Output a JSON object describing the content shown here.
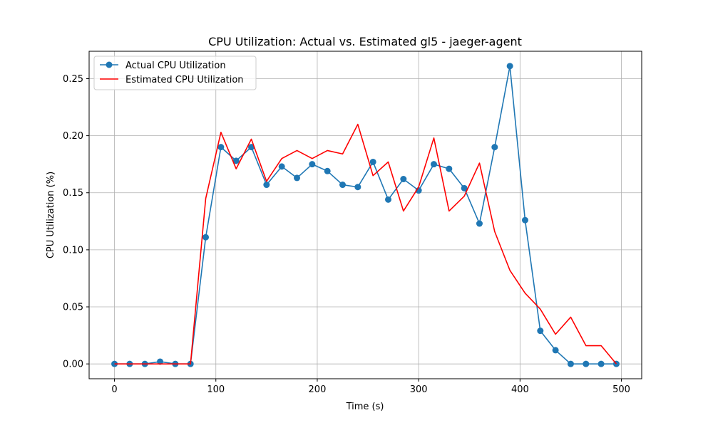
{
  "chart_data": {
    "type": "line",
    "title": "CPU Utilization: Actual vs. Estimated gl5 - jaeger-agent",
    "xlabel": "Time (s)",
    "ylabel": "CPU Utilization (%)",
    "xlim": [
      -25,
      520
    ],
    "ylim": [
      -0.013,
      0.274
    ],
    "xticks": [
      0,
      100,
      200,
      300,
      400,
      500
    ],
    "xtick_labels": [
      "0",
      "100",
      "200",
      "300",
      "400",
      "500"
    ],
    "yticks": [
      0.0,
      0.05,
      0.1,
      0.15,
      0.2,
      0.25
    ],
    "ytick_labels": [
      "0.00",
      "0.05",
      "0.10",
      "0.15",
      "0.20",
      "0.25"
    ],
    "grid": true,
    "legend_position": "top-left",
    "x": [
      0,
      15,
      30,
      45,
      60,
      75,
      90,
      105,
      120,
      135,
      150,
      165,
      180,
      195,
      210,
      225,
      240,
      255,
      270,
      285,
      300,
      315,
      330,
      345,
      360,
      375,
      390,
      405,
      420,
      435,
      450,
      465,
      480,
      495
    ],
    "series": [
      {
        "name": "Actual CPU Utilization",
        "color": "#1f77b4",
        "marker": "circle",
        "values": [
          0.0,
          0.0,
          0.0,
          0.002,
          0.0,
          0.0,
          0.111,
          0.19,
          0.178,
          0.19,
          0.157,
          0.173,
          0.163,
          0.175,
          0.169,
          0.157,
          0.155,
          0.177,
          0.144,
          0.162,
          0.152,
          0.175,
          0.171,
          0.154,
          0.123,
          0.19,
          0.261,
          0.126,
          0.029,
          0.012,
          0.0,
          0.0,
          0.0,
          0.0
        ]
      },
      {
        "name": "Estimated CPU Utilization",
        "color": "#ff0000",
        "marker": "none",
        "values": [
          0.0,
          0.0,
          0.0,
          0.0,
          0.0,
          0.0,
          0.145,
          0.203,
          0.171,
          0.197,
          0.16,
          0.18,
          0.187,
          0.18,
          0.187,
          0.184,
          0.21,
          0.165,
          0.177,
          0.134,
          0.155,
          0.198,
          0.134,
          0.147,
          0.176,
          0.116,
          0.082,
          0.062,
          0.048,
          0.026,
          0.041,
          0.016,
          0.016,
          0.0
        ]
      }
    ]
  }
}
